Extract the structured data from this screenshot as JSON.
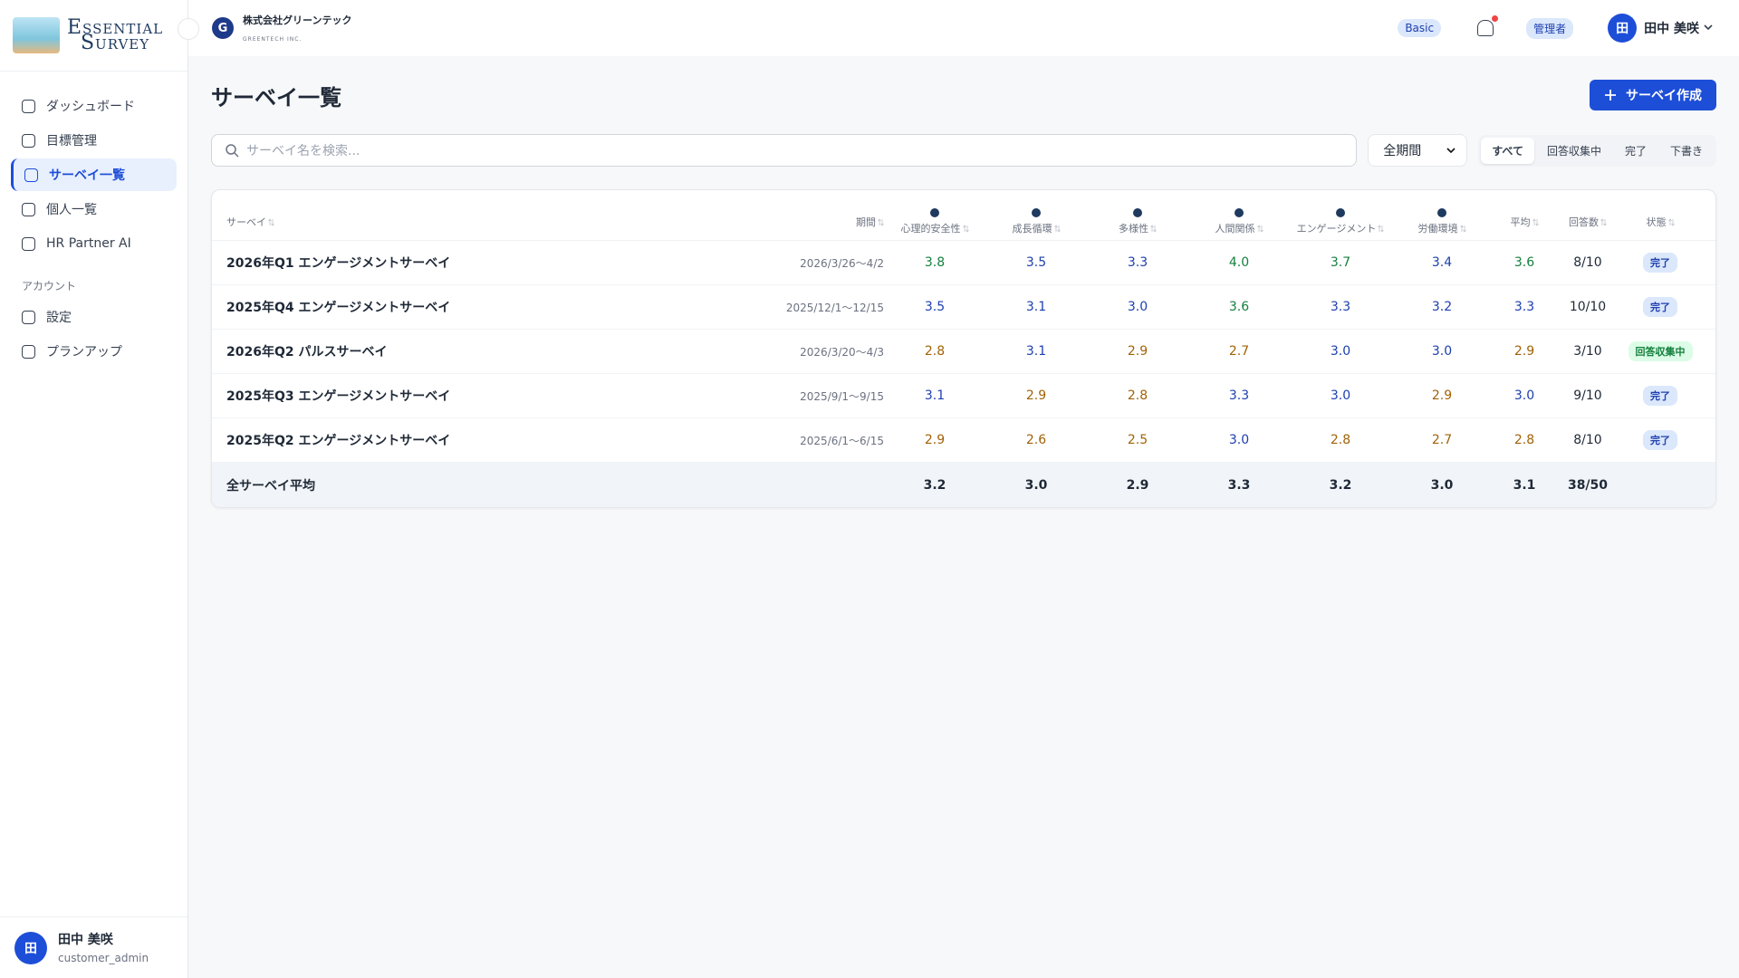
{
  "logo": {
    "line1": "Essential",
    "line2": "Survey"
  },
  "company": {
    "initial": "G",
    "name": "株式会社グリーンテック",
    "sub": "GREENTECH INC."
  },
  "nav": {
    "items": [
      "ダッシュボード",
      "目標管理",
      "サーベイ一覧",
      "個人一覧",
      "HR Partner AI"
    ],
    "active": 2,
    "section": "アカウント",
    "account_items": [
      "設定",
      "プランアップ"
    ]
  },
  "sidebar_user": {
    "avatar": "田",
    "name": "田中 美咲",
    "role": "customer_admin"
  },
  "header": {
    "plan": "Basic",
    "role": "管理者",
    "avatar": "田",
    "name": "田中 美咲"
  },
  "page": {
    "title": "サーベイ一覧",
    "create_button": "サーベイ作成",
    "search_placeholder": "サーベイ名を検索...",
    "period_select": "全期間",
    "filters": [
      "すべて",
      "回答収集中",
      "完了",
      "下書き"
    ],
    "active_filter": 0
  },
  "table": {
    "columns": [
      "サーベイ",
      "期間",
      "心理的安全性",
      "成長循環",
      "多様性",
      "人間関係",
      "エンゲージメント",
      "労働環境",
      "平均",
      "回答数",
      "状態"
    ],
    "rows": [
      {
        "name": "2026年Q1 エンゲージメントサーベイ",
        "period": "2026/3/26〜4/2",
        "scores": [
          "3.8",
          "3.5",
          "3.3",
          "4.0",
          "3.7",
          "3.4"
        ],
        "average": "3.6",
        "responses": "8/10",
        "status": "完了"
      },
      {
        "name": "2025年Q4 エンゲージメントサーベイ",
        "period": "2025/12/1〜12/15",
        "scores": [
          "3.5",
          "3.1",
          "3.0",
          "3.6",
          "3.3",
          "3.2"
        ],
        "average": "3.3",
        "responses": "10/10",
        "status": "完了"
      },
      {
        "name": "2026年Q2 パルスサーベイ",
        "period": "2026/3/20〜4/3",
        "scores": [
          "2.8",
          "3.1",
          "2.9",
          "2.7",
          "3.0",
          "3.0"
        ],
        "average": "2.9",
        "responses": "3/10",
        "status": "回答収集中"
      },
      {
        "name": "2025年Q3 エンゲージメントサーベイ",
        "period": "2025/9/1〜9/15",
        "scores": [
          "3.1",
          "2.9",
          "2.8",
          "3.3",
          "3.0",
          "2.9"
        ],
        "average": "3.0",
        "responses": "9/10",
        "status": "完了"
      },
      {
        "name": "2025年Q2 エンゲージメントサーベイ",
        "period": "2025/6/1〜6/15",
        "scores": [
          "2.9",
          "2.6",
          "2.5",
          "3.0",
          "2.8",
          "2.7"
        ],
        "average": "2.8",
        "responses": "8/10",
        "status": "完了"
      }
    ],
    "footer": {
      "label": "全サーベイ平均",
      "scores": [
        "3.2",
        "3.0",
        "2.9",
        "3.3",
        "3.2",
        "3.0"
      ],
      "average": "3.1",
      "responses": "38/50"
    }
  }
}
